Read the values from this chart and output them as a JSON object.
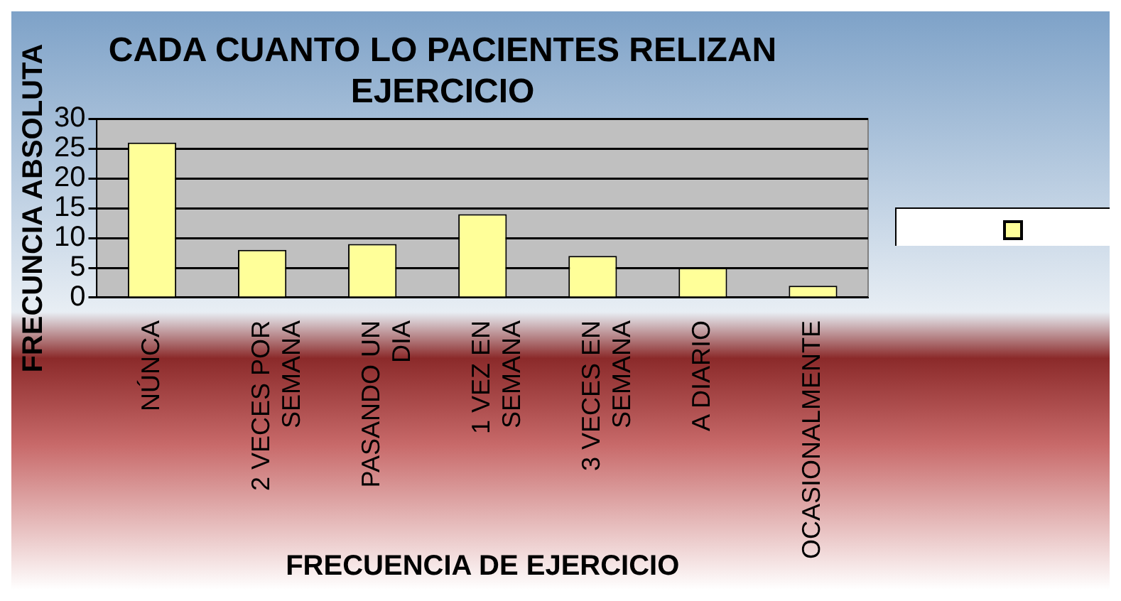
{
  "chart_data": {
    "type": "bar",
    "title": "CADA CUANTO LO PACIENTES RELIZAN EJERCICIO",
    "xlabel": "FRECUENCIA DE EJERCICIO",
    "ylabel": "FRECUNCIA ABSOLUTA",
    "categories": [
      "NÚNCA",
      "2 VECES POR SEMANA",
      "PASANDO UN DIA",
      "1 VEZ EN SEMANA",
      "3 VECES EN SEMANA",
      "A DIARIO",
      "OCASIONALMENTE"
    ],
    "series": [
      {
        "color": "#ffff99",
        "values": [
          26,
          8,
          9,
          14,
          7,
          5,
          2
        ]
      }
    ],
    "ylim": [
      0,
      30
    ],
    "yticks": [
      0,
      5,
      10,
      15,
      20,
      25,
      30
    ],
    "grid": "y"
  }
}
